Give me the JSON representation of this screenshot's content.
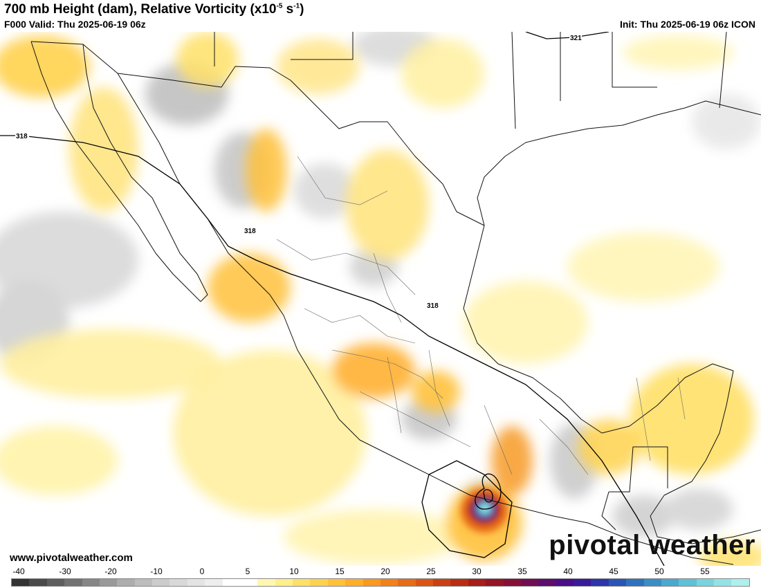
{
  "header": {
    "title_main": "700 mb Height (dam), Relative Vorticity (x10",
    "title_exp1": "-5",
    "title_mid": " s",
    "title_exp2": "-1",
    "title_end": ")",
    "valid": "F000 Valid: Thu 2025-06-19 06z",
    "init": "Init: Thu 2025-06-19 06z ICON"
  },
  "map": {
    "contour_labels": [
      "321",
      "318",
      "318",
      "318"
    ]
  },
  "branding": {
    "website": "www.pivotalweather.com",
    "watermark": "pivotal weather"
  },
  "colorbar": {
    "ticks": [
      "-40",
      "-30",
      "-20",
      "-10",
      "0",
      "5",
      "10",
      "15",
      "20",
      "25",
      "30",
      "35",
      "40",
      "45",
      "50",
      "55"
    ],
    "colors": [
      "#333333",
      "#4a4a4a",
      "#5e5e5e",
      "#727272",
      "#868686",
      "#9a9a9a",
      "#adadad",
      "#bdbdbd",
      "#cccccc",
      "#d9d9d9",
      "#e4e4e4",
      "#eeeeee",
      "#ffffff",
      "#ffffff",
      "#fff7b0",
      "#ffef8a",
      "#ffe066",
      "#ffd24d",
      "#ffc13a",
      "#ffae2a",
      "#fb981f",
      "#f2811a",
      "#e86b17",
      "#dc5414",
      "#cc3f12",
      "#bb2c12",
      "#a81d18",
      "#951425",
      "#850f38",
      "#720d52",
      "#5e0c6e",
      "#4a0e88",
      "#3a1a9c",
      "#2c35ab",
      "#2a55b6",
      "#2e72bf",
      "#3a8ec7",
      "#4aa9cf",
      "#5ec1d7",
      "#78d4df",
      "#93e3e6",
      "#aef0ee"
    ]
  }
}
